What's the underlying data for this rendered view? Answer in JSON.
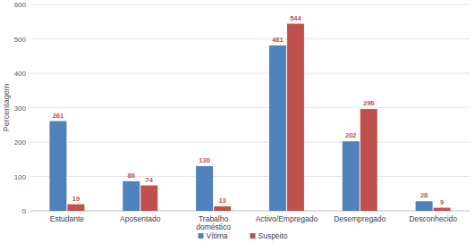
{
  "chart_data": {
    "type": "bar",
    "y_label": "Percentagem",
    "categories": [
      "Estudante",
      "Aposentado",
      "Trabalho doméstico",
      "Activo/Empregado",
      "Desempregado",
      "Desconhecido"
    ],
    "series": [
      {
        "name": "Vítima",
        "color": "#4f81bd",
        "values": [
          261,
          86,
          130,
          481,
          202,
          28
        ]
      },
      {
        "name": "Suspeito",
        "color": "#c0504d",
        "values": [
          19,
          74,
          13,
          544,
          296,
          9
        ]
      }
    ],
    "ylim": [
      0,
      600
    ],
    "yticks": [
      0,
      100,
      200,
      300,
      400,
      500,
      600
    ],
    "grid": true,
    "data_labels": true,
    "legend": "bottom"
  }
}
